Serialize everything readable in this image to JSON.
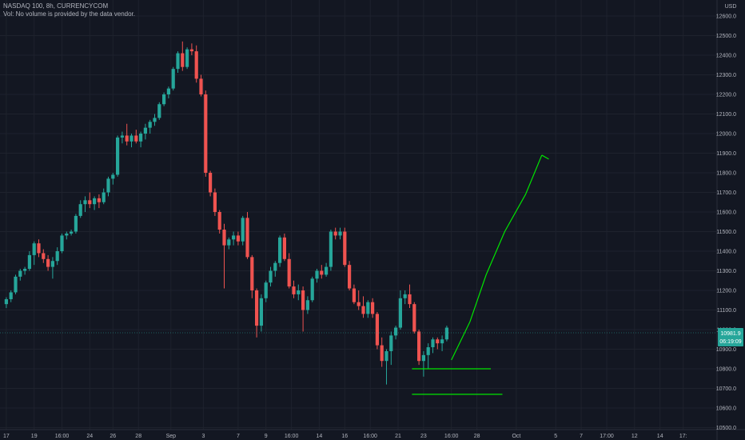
{
  "header": {
    "title": "NASDAQ 100, 8h, CURRENCYCOM",
    "volume_note": "Vol: No volume is provided by the data vendor."
  },
  "colors": {
    "background": "#131722",
    "grid": "#1e222d",
    "up": "#26a69a",
    "down": "#ef5350",
    "drawing": "#00e600",
    "text": "#b2b5be",
    "price_badge": "#26a69a"
  },
  "chart_data": {
    "type": "candlestick",
    "instrument": "NASDAQ 100",
    "timeframe": "8h",
    "source": "CURRENCYCOM",
    "currency": "USD",
    "ylim": [
      10500,
      12650
    ],
    "y_ticks": [
      "12600.0",
      "12500.0",
      "12400.0",
      "12300.0",
      "12200.0",
      "12100.0",
      "12000.0",
      "11900.0",
      "11800.0",
      "11700.0",
      "11600.0",
      "11500.0",
      "11400.0",
      "11300.0",
      "11200.0",
      "11100.0",
      "11000.0",
      "10900.0",
      "10800.0",
      "10700.0",
      "10600.0",
      "10500.0"
    ],
    "x_ticks": [
      {
        "label": "17",
        "bar": 0.5
      },
      {
        "label": "19",
        "bar": 6.5
      },
      {
        "label": "16:00",
        "bar": 12.5
      },
      {
        "label": "24",
        "bar": 18.5
      },
      {
        "label": "26",
        "bar": 23.5
      },
      {
        "label": "28",
        "bar": 29.0
      },
      {
        "label": "Sep",
        "bar": 36.0
      },
      {
        "label": "3",
        "bar": 43.0
      },
      {
        "label": "7",
        "bar": 50.5
      },
      {
        "label": "9",
        "bar": 56.5
      },
      {
        "label": "16:00",
        "bar": 62.0
      },
      {
        "label": "14",
        "bar": 68.0
      },
      {
        "label": "16",
        "bar": 73.5
      },
      {
        "label": "16:00",
        "bar": 79.0
      },
      {
        "label": "21",
        "bar": 85.0
      },
      {
        "label": "23",
        "bar": 90.5
      },
      {
        "label": "16:00",
        "bar": 96.5
      },
      {
        "label": "28",
        "bar": 102.0
      },
      {
        "label": "Oct",
        "bar": 110.5
      },
      {
        "label": "5",
        "bar": 119.0
      },
      {
        "label": "7",
        "bar": 124.5
      },
      {
        "label": "17:00",
        "bar": 130.0
      },
      {
        "label": "12",
        "bar": 136.0
      },
      {
        "label": "14",
        "bar": 141.5
      },
      {
        "label": "17:",
        "bar": 146.5
      }
    ],
    "candles": [
      [
        11130,
        11165,
        11110,
        11155
      ],
      [
        11155,
        11200,
        11140,
        11190
      ],
      [
        11190,
        11280,
        11180,
        11270
      ],
      [
        11270,
        11310,
        11250,
        11300
      ],
      [
        11300,
        11320,
        11280,
        11310
      ],
      [
        11310,
        11400,
        11300,
        11380
      ],
      [
        11380,
        11450,
        11330,
        11440
      ],
      [
        11440,
        11460,
        11370,
        11390
      ],
      [
        11390,
        11410,
        11340,
        11360
      ],
      [
        11360,
        11380,
        11300,
        11320
      ],
      [
        11320,
        11370,
        11260,
        11350
      ],
      [
        11350,
        11420,
        11330,
        11400
      ],
      [
        11400,
        11490,
        11390,
        11480
      ],
      [
        11480,
        11500,
        11460,
        11490
      ],
      [
        11490,
        11510,
        11480,
        11500
      ],
      [
        11500,
        11590,
        11490,
        11580
      ],
      [
        11580,
        11660,
        11570,
        11640
      ],
      [
        11640,
        11680,
        11600,
        11660
      ],
      [
        11660,
        11700,
        11620,
        11640
      ],
      [
        11640,
        11680,
        11610,
        11670
      ],
      [
        11670,
        11690,
        11620,
        11650
      ],
      [
        11650,
        11720,
        11640,
        11700
      ],
      [
        11700,
        11780,
        11680,
        11770
      ],
      [
        11770,
        11800,
        11740,
        11790
      ],
      [
        11790,
        11990,
        11780,
        11980
      ],
      [
        11980,
        12010,
        11950,
        11990
      ],
      [
        11990,
        12050,
        11940,
        11960
      ],
      [
        11960,
        12000,
        11930,
        11990
      ],
      [
        11990,
        12020,
        11950,
        11960
      ],
      [
        11960,
        12010,
        11930,
        12000
      ],
      [
        12000,
        12050,
        11970,
        12030
      ],
      [
        12030,
        12070,
        12000,
        12060
      ],
      [
        12060,
        12100,
        12040,
        12080
      ],
      [
        12080,
        12160,
        12070,
        12150
      ],
      [
        12150,
        12210,
        12140,
        12200
      ],
      [
        12200,
        12240,
        12180,
        12230
      ],
      [
        12230,
        12340,
        12220,
        12330
      ],
      [
        12330,
        12420,
        12310,
        12410
      ],
      [
        12410,
        12470,
        12320,
        12340
      ],
      [
        12340,
        12440,
        12330,
        12430
      ],
      [
        12430,
        12460,
        12400,
        12420
      ],
      [
        12420,
        12450,
        12260,
        12280
      ],
      [
        12280,
        12300,
        12190,
        12200
      ],
      [
        12200,
        12220,
        11780,
        11800
      ],
      [
        11800,
        11810,
        11680,
        11700
      ],
      [
        11700,
        11720,
        11580,
        11600
      ],
      [
        11600,
        11610,
        11490,
        11510
      ],
      [
        11510,
        11540,
        11210,
        11430
      ],
      [
        11430,
        11470,
        11410,
        11460
      ],
      [
        11460,
        11500,
        11430,
        11480
      ],
      [
        11480,
        11500,
        11430,
        11450
      ],
      [
        11450,
        11580,
        11430,
        11570
      ],
      [
        11570,
        11600,
        11360,
        11370
      ],
      [
        11370,
        11380,
        11160,
        11200
      ],
      [
        11200,
        11210,
        10960,
        11020
      ],
      [
        11020,
        11180,
        10990,
        11160
      ],
      [
        11160,
        11250,
        11140,
        11240
      ],
      [
        11240,
        11320,
        11220,
        11300
      ],
      [
        11300,
        11350,
        11270,
        11340
      ],
      [
        11340,
        11480,
        11320,
        11470
      ],
      [
        11470,
        11490,
        11350,
        11360
      ],
      [
        11360,
        11390,
        11210,
        11220
      ],
      [
        11220,
        11250,
        11160,
        11180
      ],
      [
        11180,
        11230,
        11150,
        11200
      ],
      [
        11200,
        11220,
        10990,
        11100
      ],
      [
        11100,
        11170,
        11080,
        11150
      ],
      [
        11150,
        11270,
        11140,
        11260
      ],
      [
        11260,
        11310,
        11240,
        11300
      ],
      [
        11300,
        11330,
        11260,
        11280
      ],
      [
        11280,
        11340,
        11270,
        11320
      ],
      [
        11320,
        11510,
        11300,
        11500
      ],
      [
        11500,
        11520,
        11460,
        11480
      ],
      [
        11480,
        11520,
        11460,
        11500
      ],
      [
        11500,
        11520,
        11320,
        11330
      ],
      [
        11330,
        11350,
        11200,
        11210
      ],
      [
        11210,
        11230,
        11130,
        11140
      ],
      [
        11140,
        11200,
        11100,
        11120
      ],
      [
        11120,
        11170,
        11060,
        11080
      ],
      [
        11080,
        11150,
        11060,
        11140
      ],
      [
        11140,
        11160,
        11060,
        11080
      ],
      [
        11080,
        11090,
        10900,
        10920
      ],
      [
        10920,
        10960,
        10810,
        10840
      ],
      [
        10840,
        10900,
        10720,
        10890
      ],
      [
        10890,
        10990,
        10820,
        10970
      ],
      [
        10970,
        11020,
        10950,
        11010
      ],
      [
        11010,
        11200,
        11000,
        11160
      ],
      [
        11160,
        11200,
        11130,
        11180
      ],
      [
        11180,
        11230,
        11110,
        11130
      ],
      [
        11130,
        11140,
        10980,
        10990
      ],
      [
        10990,
        11000,
        10820,
        10840
      ],
      [
        10840,
        10890,
        10760,
        10870
      ],
      [
        10870,
        10930,
        10800,
        10910
      ],
      [
        10910,
        10960,
        10880,
        10950
      ],
      [
        10950,
        10960,
        10900,
        10930
      ],
      [
        10930,
        10970,
        10890,
        10950
      ],
      [
        10950,
        11020,
        10940,
        11010
      ]
    ],
    "drawings": {
      "support_line_upper": {
        "price": 10800,
        "from_bar": 88,
        "to_bar": 105
      },
      "support_line_lower": {
        "price": 10670,
        "from_bar": 88,
        "to_bar": 107.5
      },
      "projection_path": [
        {
          "bar": 96.5,
          "price": 10845
        },
        {
          "bar": 100.5,
          "price": 11040
        },
        {
          "bar": 104,
          "price": 11280
        },
        {
          "bar": 108,
          "price": 11500
        },
        {
          "bar": 112.5,
          "price": 11690
        },
        {
          "bar": 116,
          "price": 11890
        },
        {
          "bar": 117.5,
          "price": 11870
        }
      ]
    },
    "price_badges": {
      "last_price": "10981.9",
      "countdown": "06:19:09"
    }
  },
  "axis": {
    "currency_label": "USD"
  }
}
